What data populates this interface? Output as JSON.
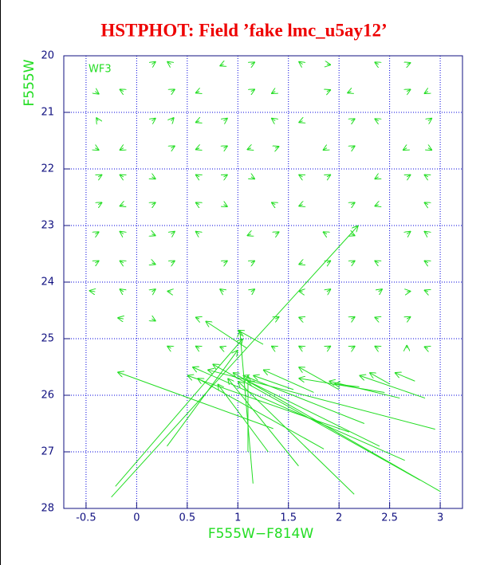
{
  "chart_data": {
    "type": "vector",
    "title": "HSTPHOT: Field ’fake lmc_u5ay12’",
    "annotation": "WF3",
    "x_label": "F555W−F814W",
    "y_label": "F555W",
    "xlim": [
      -0.72,
      3.22
    ],
    "ylim": [
      28,
      20
    ],
    "xticks": [
      -0.5,
      0,
      0.5,
      1,
      1.5,
      2,
      2.5,
      3
    ],
    "yticks": [
      20,
      21,
      22,
      23,
      24,
      25,
      26,
      27,
      28
    ],
    "grid": true,
    "color": "#22dd22",
    "title_color": "#ee0000",
    "axis_color": "#101080",
    "grid_color": "#0000dd",
    "x": [
      0.15,
      0.34,
      0.86,
      1.13,
      1.64,
      1.88,
      2.39,
      2.67,
      -0.41,
      -0.13,
      0.34,
      0.62,
      1.13,
      1.37,
      1.88,
      2.12,
      2.67,
      2.88,
      -0.38,
      0.15,
      0.34,
      0.62,
      0.86,
      1.37,
      1.64,
      2.12,
      2.39,
      2.88,
      -0.41,
      -0.13,
      0.34,
      0.62,
      0.86,
      1.13,
      1.37,
      1.88,
      2.12,
      2.67,
      2.88,
      -0.38,
      -0.13,
      0.15,
      0.62,
      0.86,
      1.13,
      1.64,
      1.88,
      2.39,
      2.67,
      2.88,
      -0.38,
      -0.13,
      0.15,
      0.62,
      0.86,
      1.37,
      1.64,
      2.12,
      2.39,
      2.88,
      -0.41,
      -0.13,
      0.15,
      0.34,
      0.62,
      1.13,
      1.37,
      1.88,
      2.12,
      2.67,
      2.88,
      -0.41,
      -0.13,
      0.15,
      0.34,
      0.86,
      1.13,
      1.64,
      1.88,
      2.12,
      2.39,
      2.88,
      -0.41,
      -0.13,
      0.15,
      0.34,
      0.86,
      1.13,
      1.64,
      1.88,
      2.39,
      2.67,
      2.88,
      -0.13,
      0.15,
      0.62,
      1.37,
      1.64,
      2.12,
      2.39,
      2.67,
      0.34,
      0.62,
      0.86,
      1.37,
      1.64,
      1.88,
      2.12,
      2.39,
      2.67,
      2.88,
      1.35,
      -0.25,
      -0.21,
      1.15,
      3.0,
      2.8,
      2.65,
      2.95,
      2.15,
      1.6,
      1.3,
      2.1,
      1.85,
      2.4,
      2.25,
      0.3,
      1.1,
      2.6,
      2.85,
      2.45,
      1.75,
      1.55,
      2.0,
      2.2,
      2.75,
      2.5,
      1.09,
      1.25
    ],
    "y": [
      20.15,
      20.15,
      20.15,
      20.15,
      20.15,
      20.15,
      20.15,
      20.15,
      20.63,
      20.63,
      20.63,
      20.63,
      20.63,
      20.63,
      20.63,
      20.63,
      20.63,
      20.63,
      21.15,
      21.15,
      21.15,
      21.15,
      21.15,
      21.15,
      21.15,
      21.15,
      21.15,
      21.15,
      21.63,
      21.63,
      21.63,
      21.63,
      21.63,
      21.63,
      21.63,
      21.63,
      21.63,
      21.63,
      21.63,
      22.14,
      22.14,
      22.14,
      22.14,
      22.14,
      22.14,
      22.14,
      22.14,
      22.14,
      22.14,
      22.14,
      22.63,
      22.63,
      22.63,
      22.63,
      22.63,
      22.63,
      22.63,
      22.63,
      22.63,
      22.63,
      23.15,
      23.15,
      23.15,
      23.15,
      23.15,
      23.15,
      23.15,
      23.15,
      23.15,
      23.15,
      23.15,
      23.66,
      23.66,
      23.66,
      23.66,
      23.66,
      23.66,
      23.66,
      23.66,
      23.66,
      23.66,
      23.66,
      24.17,
      24.17,
      24.17,
      24.17,
      24.17,
      24.17,
      24.17,
      24.17,
      24.17,
      24.17,
      24.17,
      24.65,
      24.65,
      24.65,
      24.65,
      24.65,
      24.65,
      24.65,
      24.65,
      25.17,
      25.17,
      25.17,
      25.17,
      25.17,
      25.17,
      25.17,
      25.17,
      25.17,
      25.17,
      26.59,
      27.8,
      27.61,
      27.56,
      27.7,
      27.5,
      27.15,
      26.6,
      27.75,
      27.25,
      27.0,
      26.65,
      26.95,
      26.9,
      26.5,
      26.9,
      27.0,
      26.05,
      26.05,
      25.95,
      25.95,
      25.9,
      25.9,
      25.85,
      25.75,
      25.8,
      25.17,
      25.1
    ],
    "x_end": [
      0.19,
      0.3,
      0.82,
      1.17,
      1.6,
      1.92,
      2.35,
      2.71,
      -0.37,
      -0.17,
      0.38,
      0.58,
      1.17,
      1.33,
      1.92,
      2.08,
      2.71,
      2.84,
      -0.4,
      0.19,
      0.37,
      0.58,
      0.9,
      1.33,
      1.6,
      2.16,
      2.35,
      2.92,
      -0.37,
      -0.17,
      0.38,
      0.58,
      0.9,
      1.09,
      1.41,
      1.84,
      2.16,
      2.63,
      2.92,
      -0.34,
      -0.17,
      0.19,
      0.58,
      0.9,
      1.17,
      1.6,
      1.92,
      2.35,
      2.71,
      2.84,
      -0.34,
      -0.17,
      0.19,
      0.58,
      0.9,
      1.33,
      1.6,
      2.16,
      2.35,
      2.84,
      -0.37,
      -0.17,
      0.19,
      0.38,
      0.58,
      1.09,
      1.41,
      1.84,
      2.16,
      2.71,
      2.84,
      -0.37,
      -0.17,
      0.19,
      0.38,
      0.9,
      1.17,
      1.6,
      1.92,
      2.16,
      2.35,
      2.84,
      -0.47,
      -0.17,
      0.19,
      0.3,
      0.82,
      1.17,
      1.6,
      1.92,
      2.43,
      2.71,
      2.84,
      -0.19,
      0.19,
      0.58,
      1.41,
      1.6,
      2.16,
      2.35,
      2.71,
      0.3,
      0.58,
      0.82,
      1.33,
      1.6,
      1.92,
      2.16,
      2.35,
      2.67,
      2.84,
      -0.19,
      2.19,
      1.05,
      1.02,
      0.95,
      0.75,
      0.55,
      0.7,
      1.0,
      0.9,
      0.8,
      0.5,
      0.6,
      1.1,
      1.05,
      1.0,
      1.1,
      1.9,
      2.2,
      1.6,
      1.25,
      1.15,
      1.6,
      1.95,
      2.55,
      2.3,
      0.68,
      1.0
    ],
    "y_end": [
      20.1,
      20.1,
      20.18,
      20.11,
      20.1,
      20.16,
      20.11,
      20.12,
      20.68,
      20.59,
      20.59,
      20.66,
      20.59,
      20.67,
      20.6,
      20.66,
      20.59,
      20.67,
      21.09,
      21.1,
      21.09,
      21.18,
      21.1,
      21.1,
      21.18,
      21.11,
      21.11,
      21.1,
      21.67,
      21.67,
      21.59,
      21.66,
      21.59,
      21.66,
      21.6,
      21.67,
      21.59,
      21.67,
      21.67,
      22.1,
      22.1,
      22.18,
      22.1,
      22.1,
      22.18,
      22.1,
      22.1,
      22.18,
      22.1,
      22.1,
      22.59,
      22.66,
      22.59,
      22.59,
      22.67,
      22.59,
      22.66,
      22.59,
      22.66,
      22.59,
      23.11,
      23.1,
      23.18,
      23.1,
      23.1,
      23.18,
      23.11,
      23.11,
      23.18,
      23.1,
      23.1,
      23.62,
      23.62,
      23.69,
      23.62,
      23.62,
      23.62,
      23.69,
      23.62,
      23.62,
      23.62,
      23.62,
      24.15,
      24.12,
      24.12,
      24.16,
      24.12,
      24.12,
      24.16,
      24.12,
      24.12,
      24.16,
      24.14,
      24.63,
      24.69,
      24.62,
      24.61,
      24.62,
      24.61,
      24.62,
      24.61,
      25.13,
      25.13,
      25.14,
      25.13,
      25.13,
      25.13,
      25.13,
      25.13,
      25.11,
      25.14,
      25.59,
      23.0,
      25.0,
      24.86,
      25.6,
      25.45,
      25.5,
      25.55,
      25.75,
      25.7,
      25.8,
      25.65,
      25.7,
      25.75,
      25.65,
      25.2,
      25.65,
      25.75,
      25.65,
      25.7,
      25.55,
      25.65,
      25.5,
      25.8,
      25.6,
      25.6,
      24.69,
      24.85
    ]
  }
}
